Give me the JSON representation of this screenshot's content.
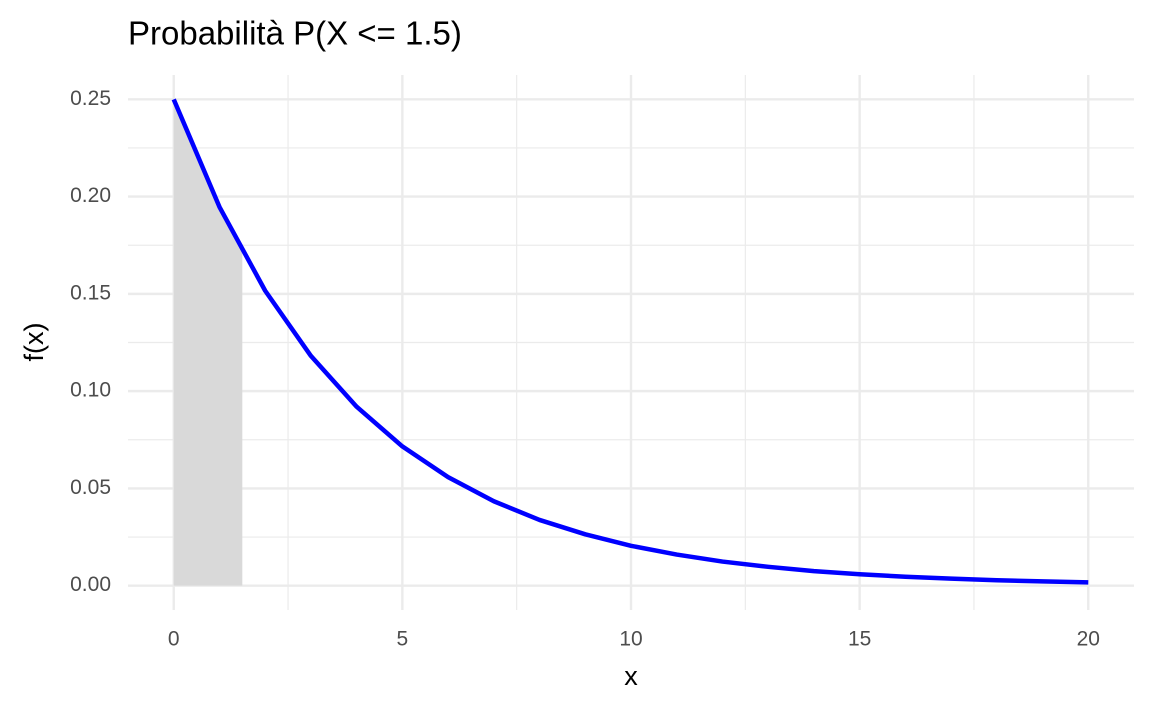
{
  "chart_data": {
    "type": "line",
    "title": "Probabilità P(X <= 1.5)",
    "x_label": "x",
    "y_label": "f(x)",
    "x": [
      0,
      1,
      2,
      3,
      4,
      5,
      6,
      7,
      8,
      9,
      10,
      11,
      12,
      13,
      14,
      15,
      16,
      17,
      18,
      19,
      20
    ],
    "values": [
      0.25,
      0.1947,
      0.1516,
      0.1181,
      0.092,
      0.0716,
      0.0558,
      0.0434,
      0.0338,
      0.0264,
      0.0205,
      0.016,
      0.0124,
      0.0097,
      0.0075,
      0.0059,
      0.0046,
      0.0036,
      0.0028,
      0.0022,
      0.0017
    ],
    "color": "#0000ff",
    "shaded": {
      "x": [
        0,
        0.5,
        1,
        1.5
      ],
      "values": [
        0.25,
        0.2206,
        0.1947,
        0.1718
      ],
      "color": "#d9d9d9"
    },
    "xlim": [
      -1,
      21
    ],
    "ylim": [
      -0.0125,
      0.2625
    ],
    "xticks": [
      0,
      5,
      10,
      15,
      20
    ],
    "yticks": [
      {
        "value": 0,
        "label": "0.00"
      },
      {
        "value": 0.05,
        "label": "0.05"
      },
      {
        "value": 0.1,
        "label": "0.10"
      },
      {
        "value": 0.15,
        "label": "0.15"
      },
      {
        "value": 0.2,
        "label": "0.20"
      },
      {
        "value": 0.25,
        "label": "0.25"
      }
    ],
    "x_minor_ticks": [
      2.5,
      7.5,
      12.5,
      17.5
    ],
    "y_minor_ticks": [
      0.025,
      0.075,
      0.125,
      0.175,
      0.225
    ],
    "grid": true
  }
}
